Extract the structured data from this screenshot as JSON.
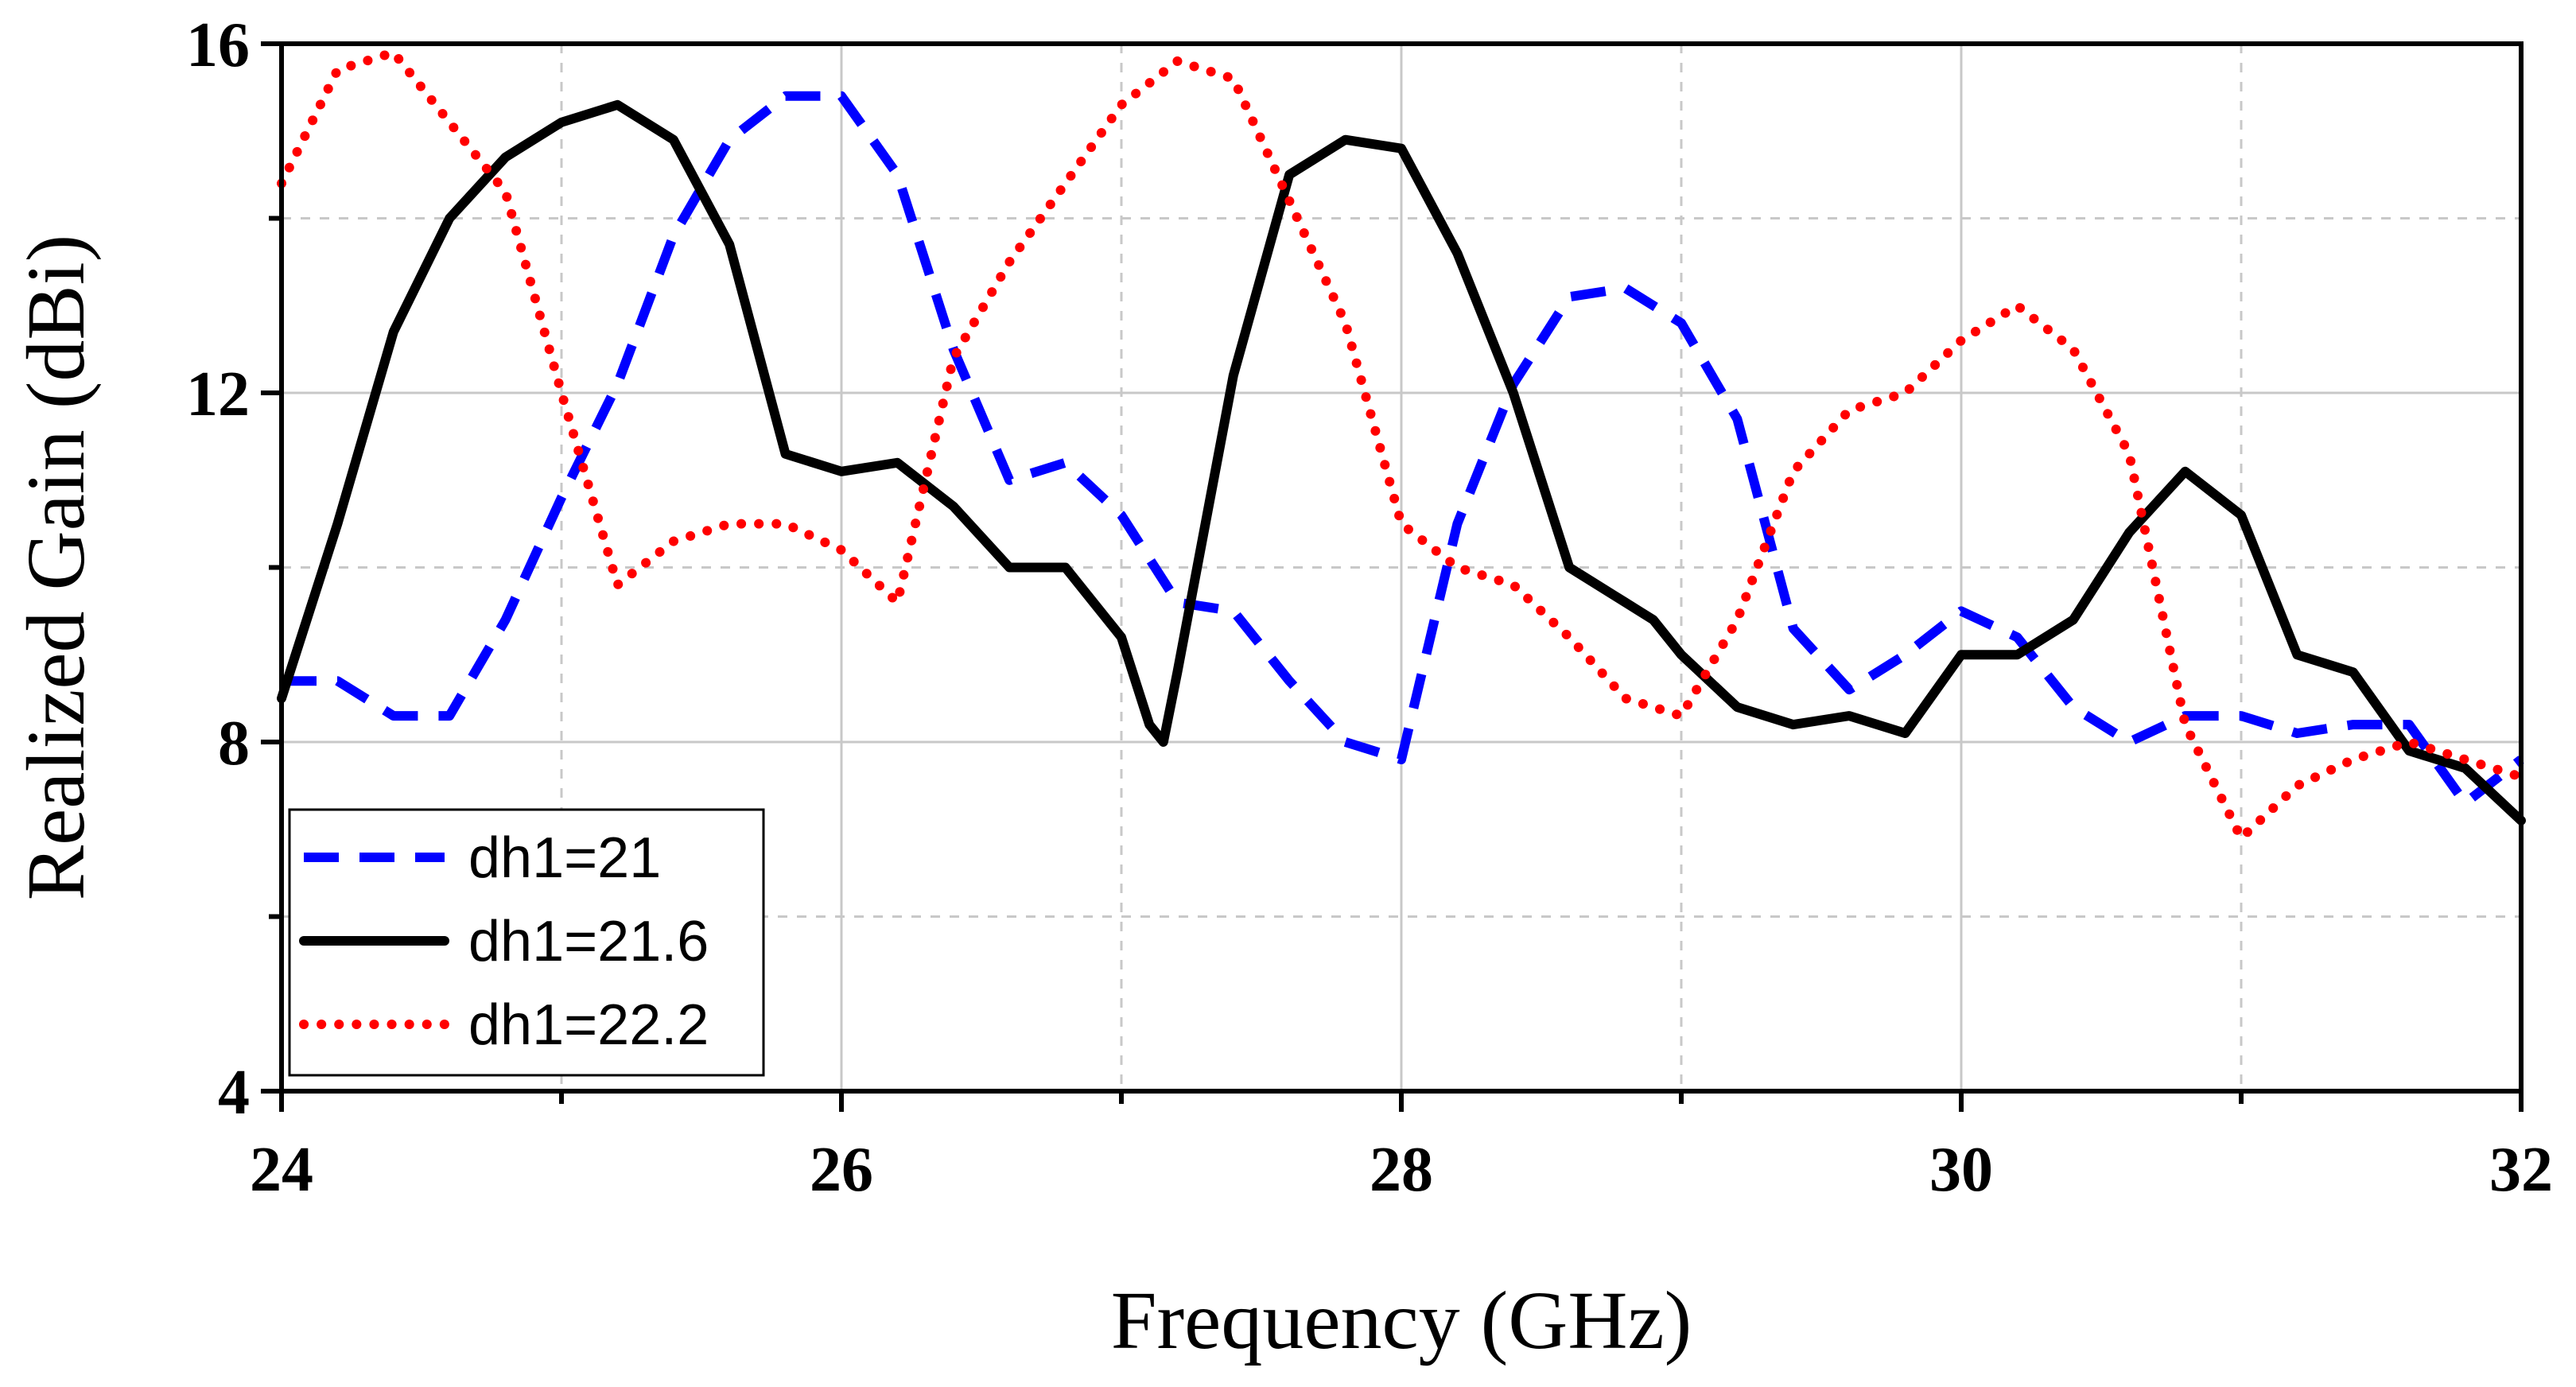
{
  "chart_data": {
    "type": "line",
    "title": "",
    "xlabel": "Frequency (GHz)",
    "ylabel": "Realized Gain (dBi)",
    "xlim": [
      24,
      32
    ],
    "ylim": [
      4,
      16
    ],
    "xticks": [
      24,
      26,
      28,
      30,
      32
    ],
    "yticks": [
      4,
      8,
      12,
      16
    ],
    "xtick_labels": [
      "24",
      "26",
      "28",
      "30",
      "32"
    ],
    "ytick_labels": [
      "4",
      "8",
      "12",
      "16"
    ],
    "grid": true,
    "legend_position": "bottom-left",
    "series": [
      {
        "name": "dh1=21",
        "color": "#0000ff",
        "style": "dashed",
        "x": [
          24,
          24.2,
          24.4,
          24.6,
          24.8,
          25.0,
          25.2,
          25.4,
          25.6,
          25.8,
          26.0,
          26.2,
          26.4,
          26.6,
          26.8,
          27.0,
          27.2,
          27.4,
          27.6,
          27.8,
          28.0,
          28.2,
          28.4,
          28.6,
          28.8,
          29.0,
          29.2,
          29.4,
          29.6,
          29.8,
          30.0,
          30.2,
          30.4,
          30.6,
          30.8,
          31.0,
          31.2,
          31.4,
          31.6,
          31.8,
          32.0
        ],
        "values": [
          8.7,
          8.7,
          8.3,
          8.3,
          9.4,
          10.8,
          12.1,
          13.8,
          14.9,
          15.4,
          15.4,
          14.5,
          12.5,
          11.0,
          11.2,
          10.6,
          9.6,
          9.5,
          8.7,
          8.0,
          7.8,
          10.5,
          12.1,
          13.1,
          13.2,
          12.8,
          11.7,
          9.3,
          8.6,
          9.0,
          9.5,
          9.2,
          8.4,
          8.0,
          8.3,
          8.3,
          8.1,
          8.2,
          8.2,
          7.3,
          7.8
        ]
      },
      {
        "name": "dh1=21.6",
        "color": "#000000",
        "style": "solid",
        "x": [
          24,
          24.2,
          24.4,
          24.6,
          24.8,
          25.0,
          25.2,
          25.4,
          25.6,
          25.8,
          26.0,
          26.2,
          26.4,
          26.6,
          26.8,
          27.0,
          27.1,
          27.15,
          27.2,
          27.4,
          27.6,
          27.8,
          28.0,
          28.2,
          28.4,
          28.6,
          28.8,
          28.9,
          29.0,
          29.2,
          29.4,
          29.6,
          29.8,
          30.0,
          30.2,
          30.4,
          30.6,
          30.8,
          31.0,
          31.2,
          31.4,
          31.6,
          31.8,
          32.0
        ],
        "values": [
          8.5,
          10.5,
          12.7,
          14.0,
          14.7,
          15.1,
          15.3,
          14.9,
          13.7,
          11.3,
          11.1,
          11.2,
          10.7,
          10.0,
          10.0,
          9.2,
          8.2,
          8.0,
          8.8,
          12.2,
          14.5,
          14.9,
          14.8,
          13.6,
          12.0,
          10.0,
          9.6,
          9.4,
          9.0,
          8.4,
          8.2,
          8.3,
          8.1,
          9.0,
          9.0,
          9.4,
          10.4,
          11.1,
          10.6,
          9.0,
          8.8,
          7.9,
          7.7,
          7.1
        ]
      },
      {
        "name": "dh1=22.2",
        "color": "#ff0000",
        "style": "dotted",
        "x": [
          24,
          24.2,
          24.4,
          24.6,
          24.8,
          25.0,
          25.2,
          25.4,
          25.6,
          25.8,
          26.0,
          26.2,
          26.4,
          26.6,
          26.8,
          27.0,
          27.2,
          27.4,
          27.6,
          27.8,
          28.0,
          28.2,
          28.4,
          28.6,
          28.8,
          29.0,
          29.2,
          29.4,
          29.6,
          29.8,
          30.0,
          30.2,
          30.4,
          30.6,
          30.8,
          31.0,
          31.2,
          31.4,
          31.6,
          31.8,
          32.0
        ],
        "values": [
          14.4,
          15.7,
          15.9,
          15.1,
          14.3,
          12.0,
          9.8,
          10.3,
          10.5,
          10.5,
          10.2,
          9.6,
          12.4,
          13.5,
          14.4,
          15.3,
          15.8,
          15.6,
          14.2,
          12.8,
          10.5,
          10.0,
          9.8,
          9.2,
          8.5,
          8.3,
          9.4,
          11.1,
          11.8,
          12.0,
          12.6,
          13.0,
          12.5,
          11.3,
          8.2,
          6.9,
          7.5,
          7.8,
          8.0,
          7.8,
          7.6
        ]
      }
    ]
  }
}
